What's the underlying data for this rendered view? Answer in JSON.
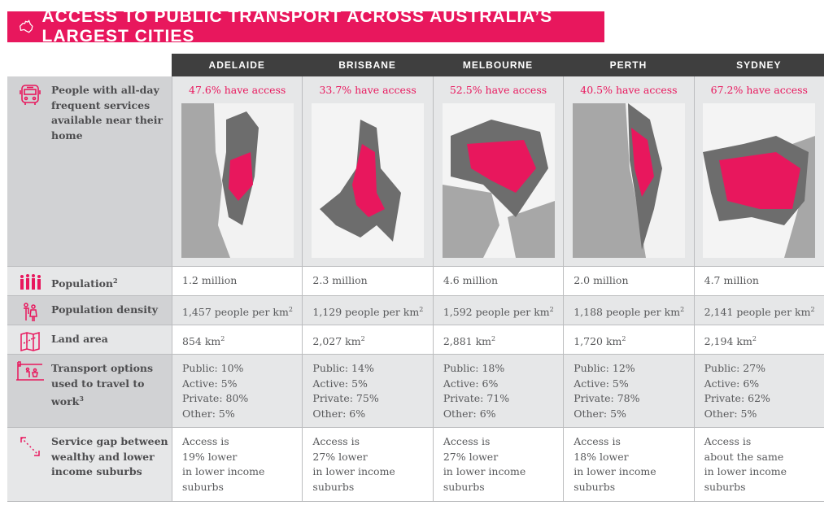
{
  "title": "ACCESS TO PUBLIC TRANSPORT ACROSS AUSTRALIA’S LARGEST CITIES",
  "cities": [
    "ADELAIDE",
    "BRISBANE",
    "MELBOURNE",
    "PERTH",
    "SYDNEY"
  ],
  "rows": {
    "access": {
      "label": "People with all-day frequent services available near their home",
      "values": [
        "47.6% have access",
        "33.7% have access",
        "52.5% have access",
        "40.5% have access",
        "67.2% have access"
      ],
      "fractions": [
        0.476,
        0.337,
        0.525,
        0.405,
        0.672
      ]
    },
    "population": {
      "label": "Population",
      "note": "2",
      "values": [
        "1.2 million",
        "2.3 million",
        "4.6 million",
        "2.0 million",
        "4.7 million"
      ]
    },
    "density": {
      "label": "Population density",
      "values": [
        "1,457 people per km",
        "1,129 people per km",
        "1,592 people per km",
        "1,188 people per km",
        "2,141 people per km"
      ],
      "unit_sup": "2"
    },
    "land": {
      "label": "Land area",
      "values": [
        "854 km",
        "2,027 km",
        "2,881 km",
        "1,720 km",
        "2,194 km"
      ],
      "unit_sup": "2"
    },
    "transport": {
      "label": "Transport options used to travel to work",
      "note": "3",
      "values": [
        [
          "Public: 10%",
          "Active: 5%",
          "Private: 80%",
          "Other: 5%"
        ],
        [
          "Public: 14%",
          "Active: 5%",
          "Private: 75%",
          "Other: 6%"
        ],
        [
          "Public: 18%",
          "Active: 6%",
          "Private: 71%",
          "Other: 6%"
        ],
        [
          "Public: 12%",
          "Active: 5%",
          "Private: 78%",
          "Other: 5%"
        ],
        [
          "Public: 27%",
          "Active: 6%",
          "Private: 62%",
          "Other: 5%"
        ]
      ]
    },
    "gap": {
      "label": "Service gap between wealthy and lower income suburbs",
      "values": [
        [
          "Access is",
          "19% lower",
          "in lower income",
          "suburbs"
        ],
        [
          "Access is",
          "27% lower",
          "in lower income",
          "suburbs"
        ],
        [
          "Access is",
          "27% lower",
          "in lower income",
          "suburbs"
        ],
        [
          "Access is",
          "18% lower",
          "in lower income",
          "suburbs"
        ],
        [
          "Access is",
          "about the same",
          "in lower income",
          "suburbs"
        ]
      ]
    }
  },
  "colors": {
    "accent": "#e8175d",
    "header": "#3f3f3f"
  }
}
